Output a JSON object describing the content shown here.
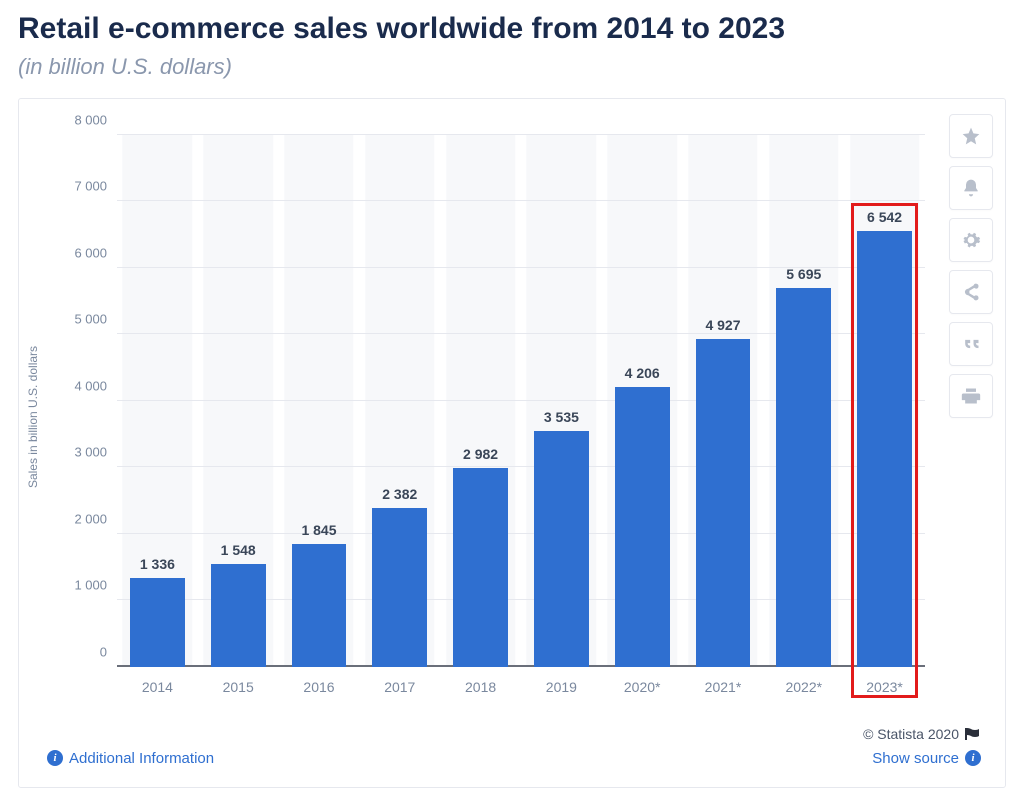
{
  "header": {
    "title": "Retail e-commerce sales worldwide from 2014 to 2023",
    "subtitle": "(in billion U.S. dollars)"
  },
  "chart": {
    "type": "bar",
    "y_axis_label": "Sales in billion U.S. dollars",
    "ylim": [
      0,
      8000
    ],
    "ytick_step": 1000,
    "ytick_labels": [
      "0",
      "1 000",
      "2 000",
      "3 000",
      "4 000",
      "5 000",
      "6 000",
      "7 000",
      "8 000"
    ],
    "categories": [
      "2014",
      "2015",
      "2016",
      "2017",
      "2018",
      "2019",
      "2020*",
      "2021*",
      "2022*",
      "2023*"
    ],
    "values": [
      1336,
      1548,
      1845,
      2382,
      2982,
      3535,
      4206,
      4927,
      5695,
      6542
    ],
    "value_labels": [
      "1 336",
      "1 548",
      "1 845",
      "2 382",
      "2 982",
      "3 535",
      "4 206",
      "4 927",
      "5 695",
      "6 542"
    ],
    "bar_color": "#2f6fd0",
    "bar_bg_color": "#f7f8fa",
    "grid_color": "#e6e8ee",
    "axis_color": "#6a6f7a",
    "label_color": "#3a4658",
    "tick_color": "#7a889e",
    "title_fontsize": 30,
    "subtitle_fontsize": 22,
    "bar_width_ratio": 0.68,
    "highlight_index": 9,
    "highlight_color": "#e21b1b"
  },
  "tools": {
    "icon_color": "#b8bfcb",
    "items": [
      "star",
      "bell",
      "gear",
      "share",
      "quote",
      "print"
    ]
  },
  "footer": {
    "additional_info": "Additional Information",
    "show_source": "Show source",
    "attribution": "© Statista 2020"
  }
}
